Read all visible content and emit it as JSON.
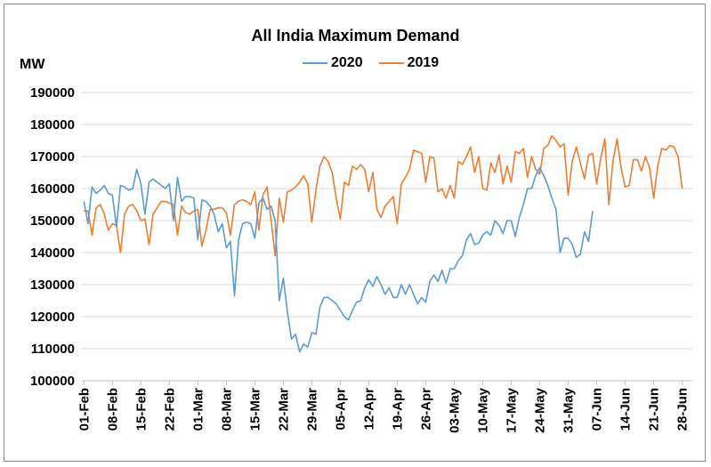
{
  "chart_data": {
    "type": "line",
    "title": "All India Maximum Demand",
    "ylabel": "MW",
    "ylim": [
      100000,
      190000
    ],
    "yticks": [
      "100000",
      "110000",
      "120000",
      "130000",
      "140000",
      "150000",
      "160000",
      "170000",
      "180000",
      "190000"
    ],
    "x_start": "01-Feb",
    "x_end": "30-Jun",
    "xtick_labels": [
      "01-Feb",
      "08-Feb",
      "15-Feb",
      "22-Feb",
      "01-Mar",
      "08-Mar",
      "15-Mar",
      "22-Mar",
      "29-Mar",
      "05-Apr",
      "12-Apr",
      "19-Apr",
      "26-Apr",
      "03-May",
      "10-May",
      "17-May",
      "24-May",
      "31-May",
      "07-Jun",
      "14-Jun",
      "21-Jun",
      "28-Jun"
    ],
    "grid": "horizontal",
    "legend_position": "top",
    "series": [
      {
        "name": "2020",
        "color": "#5b9bd5",
        "values": [
          156000,
          149000,
          160500,
          158500,
          159500,
          161000,
          158500,
          158000,
          148000,
          161000,
          160500,
          159500,
          160000,
          166000,
          161500,
          152000,
          162000,
          163000,
          162000,
          161000,
          160000,
          161500,
          150000,
          163500,
          156000,
          157500,
          157500,
          157000,
          144000,
          156500,
          156000,
          154500,
          152000,
          146500,
          149000,
          141500,
          143500,
          126500,
          144000,
          149000,
          149500,
          149000,
          144500,
          155500,
          157000,
          153500,
          154500,
          150000,
          125000,
          132000,
          121500,
          113000,
          114500,
          109000,
          111500,
          110500,
          115000,
          114500,
          123000,
          126000,
          126000,
          125000,
          124000,
          122000,
          120000,
          119000,
          122000,
          124500,
          125000,
          129000,
          131500,
          129500,
          132500,
          130000,
          127000,
          129000,
          126000,
          126000,
          130000,
          127000,
          130000,
          127000,
          124000,
          126000,
          124500,
          131000,
          133000,
          131000,
          134500,
          130500,
          135000,
          135000,
          137500,
          139000,
          144000,
          146000,
          142500,
          143000,
          145500,
          146500,
          145500,
          150000,
          148500,
          146000,
          150000,
          150000,
          145000,
          151000,
          155000,
          160000,
          160000,
          164000,
          166500,
          164000,
          161000,
          157000,
          153500,
          140000,
          144500,
          144500,
          142500,
          138500,
          139500,
          146500,
          143500,
          153000
        ]
      },
      {
        "name": "2019",
        "color": "#ed7d31",
        "values": [
          153000,
          153000,
          145500,
          154000,
          155000,
          152000,
          147000,
          149000,
          148500,
          140000,
          152000,
          154500,
          155000,
          153000,
          150000,
          150500,
          142500,
          152000,
          154000,
          156000,
          156000,
          155500,
          155000,
          145500,
          154500,
          152500,
          152000,
          153000,
          153500,
          142000,
          147000,
          153500,
          153500,
          154000,
          154000,
          152500,
          145500,
          155000,
          156000,
          156500,
          156000,
          155000,
          159000,
          147000,
          158000,
          160500,
          150000,
          139000,
          157000,
          149500,
          159000,
          159500,
          160500,
          162000,
          164000,
          161500,
          149500,
          159500,
          167000,
          170000,
          168500,
          165000,
          157000,
          150500,
          162000,
          161000,
          167000,
          166000,
          167500,
          166000,
          159000,
          165000,
          153500,
          151000,
          154500,
          156000,
          157500,
          149000,
          161500,
          163500,
          166000,
          172000,
          171500,
          171000,
          162000,
          170000,
          169500,
          159000,
          160000,
          157000,
          161000,
          157000,
          168500,
          167500,
          170000,
          173000,
          165000,
          170000,
          160000,
          159500,
          168000,
          165000,
          170500,
          161500,
          167000,
          162000,
          171500,
          171000,
          172500,
          163500,
          170000,
          166000,
          164500,
          172500,
          173500,
          176500,
          175000,
          173000,
          174000,
          158000,
          168500,
          173000,
          168000,
          163000,
          170500,
          171000,
          161500,
          169500,
          175500,
          155000,
          168500,
          175500,
          166500,
          160500,
          161000,
          169000,
          169000,
          165500,
          170000,
          166500,
          157000,
          167000,
          172500,
          172000,
          173500,
          173000,
          170000,
          160000
        ]
      }
    ]
  }
}
